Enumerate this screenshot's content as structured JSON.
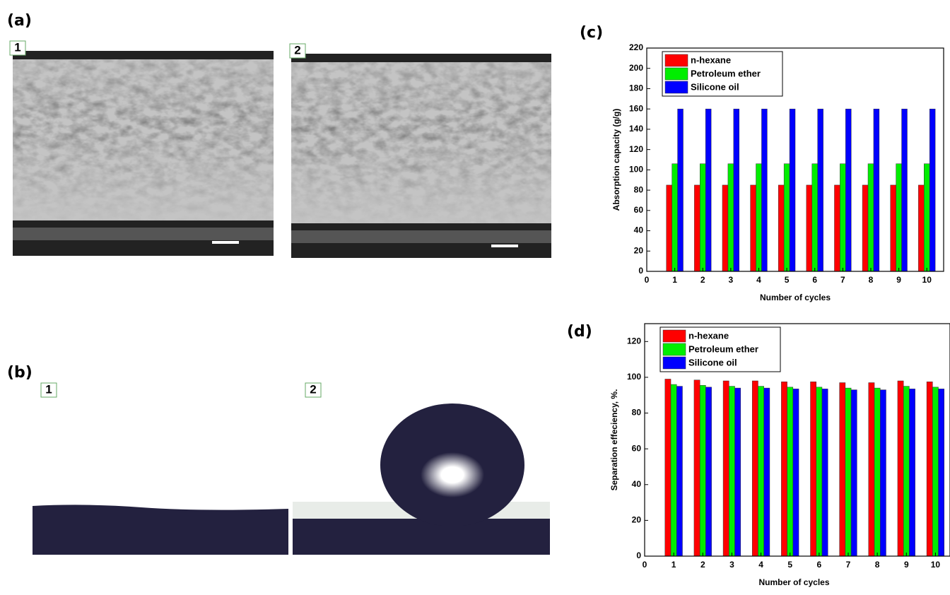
{
  "panels": {
    "a": {
      "label": "(a)",
      "images": [
        "1",
        "2"
      ]
    },
    "b": {
      "label": "(b)",
      "images": [
        "1",
        "2"
      ]
    },
    "c": {
      "label": "(c)"
    },
    "d": {
      "label": "(d)"
    }
  },
  "chart_data": [
    {
      "type": "bar",
      "x_label": "Number of cycles",
      "y_label": "Absorption capacity (g/g)",
      "x": [
        1,
        2,
        3,
        4,
        5,
        6,
        7,
        8,
        9,
        10
      ],
      "xlim": [
        0,
        10.6
      ],
      "xticks": [
        0,
        1,
        2,
        3,
        4,
        5,
        6,
        7,
        8,
        9,
        10
      ],
      "ylim": [
        0,
        220
      ],
      "yticks": [
        0,
        20,
        40,
        60,
        80,
        100,
        120,
        140,
        160,
        180,
        200,
        220
      ],
      "legend": "top-left",
      "series": [
        {
          "name": "n-hexane",
          "color": "#ff0000",
          "values": [
            85,
            85,
            85,
            85,
            85,
            85,
            85,
            85,
            85,
            85
          ]
        },
        {
          "name": "Petroleum ether",
          "color": "#00ee00",
          "values": [
            106,
            106,
            106,
            106,
            106,
            106,
            106,
            106,
            106,
            106
          ]
        },
        {
          "name": "Silicone oil",
          "color": "#0000ff",
          "values": [
            160,
            160,
            160,
            160,
            160,
            160,
            160,
            160,
            160,
            160
          ]
        }
      ]
    },
    {
      "type": "bar",
      "x_label": "Number of cycles",
      "y_label": "Separation effeciency, %.",
      "x": [
        1,
        2,
        3,
        4,
        5,
        6,
        7,
        8,
        9,
        10
      ],
      "xlim": [
        0,
        10.5
      ],
      "xticks": [
        0,
        1,
        2,
        3,
        4,
        5,
        6,
        7,
        8,
        9,
        10
      ],
      "ylim": [
        0,
        130
      ],
      "yticks": [
        0,
        20,
        40,
        60,
        80,
        100,
        120
      ],
      "legend": "top-left",
      "series": [
        {
          "name": "n-hexane",
          "color": "#ff0000",
          "values": [
            99,
            98.5,
            98,
            98,
            97.5,
            97.5,
            97,
            97,
            98,
            97.5
          ]
        },
        {
          "name": "Petroleum ether",
          "color": "#00ee00",
          "values": [
            96,
            95.5,
            95,
            95,
            94.5,
            94.5,
            94,
            94,
            95,
            94.5
          ]
        },
        {
          "name": "Silicone oil",
          "color": "#0000ff",
          "values": [
            95,
            94.5,
            94,
            94,
            93.5,
            93.5,
            93,
            93,
            93.5,
            93.5
          ]
        }
      ]
    }
  ]
}
